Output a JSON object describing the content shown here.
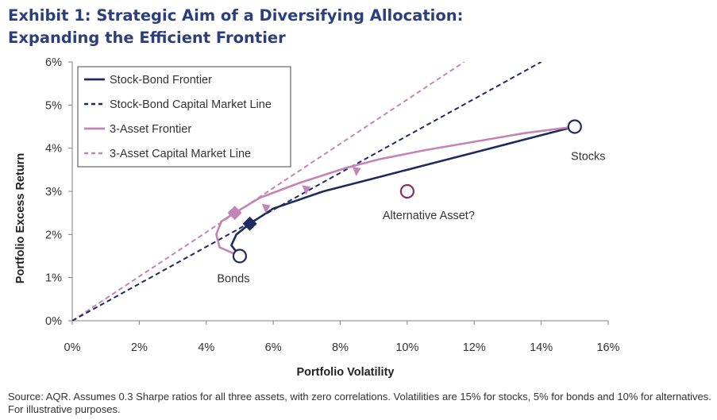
{
  "header": {
    "title_line1": "Exhibit 1: Strategic Aim of a Diversifying Allocation:",
    "title_line2": "Expanding the Efficient Frontier"
  },
  "footer": {
    "source": "Source: AQR. Assumes 0.3 Sharpe ratios for all three assets, with zero correlations. Volatilities are 15% for stocks, 5% for bonds and 10% for alternatives. For illustrative purposes."
  },
  "chart_data": {
    "type": "line",
    "title": "Exhibit 1: Strategic Aim of a Diversifying Allocation: Expanding the Efficient Frontier",
    "xlabel": "Portfolio Volatility",
    "ylabel": "Portfolio Excess Return",
    "xlim": [
      0,
      16
    ],
    "ylim": [
      0,
      6
    ],
    "x_ticks": [
      0,
      2,
      4,
      6,
      8,
      10,
      12,
      14,
      16
    ],
    "y_ticks": [
      0,
      1,
      2,
      3,
      4,
      5,
      6
    ],
    "x_tick_labels": [
      "0%",
      "2%",
      "4%",
      "6%",
      "8%",
      "10%",
      "12%",
      "14%",
      "16%"
    ],
    "y_tick_labels": [
      "0%",
      "1%",
      "2%",
      "3%",
      "4%",
      "5%",
      "6%"
    ],
    "grid": false,
    "legend_position": "top-left",
    "colors": {
      "navy": "#1f2a5e",
      "pink": "#c484b8",
      "purple": "#8b2a6a",
      "axis": "#7f7f7f",
      "title": "#2b3f7e"
    },
    "series": [
      {
        "name": "Stock-Bond Frontier",
        "style": "solid",
        "color": "#1f2a5e",
        "x": [
          5.0,
          4.75,
          4.9,
          5.3,
          6.0,
          7.5,
          9.0,
          10.5,
          12.0,
          13.5,
          15.0
        ],
        "y": [
          1.5,
          1.75,
          2.0,
          2.25,
          2.6,
          3.0,
          3.3,
          3.6,
          3.9,
          4.2,
          4.5
        ]
      },
      {
        "name": "Stock-Bond Capital Market Line",
        "style": "dashed",
        "color": "#1f2a5e",
        "x": [
          0,
          14.0
        ],
        "y": [
          0,
          6.0
        ]
      },
      {
        "name": "3-Asset Frontier",
        "style": "solid",
        "color": "#c484b8",
        "x": [
          4.85,
          4.4,
          4.3,
          4.45,
          4.85,
          5.6,
          6.8,
          8.2,
          9.2,
          10.5,
          12.0,
          13.5,
          15.0
        ],
        "y": [
          1.55,
          1.7,
          2.0,
          2.3,
          2.5,
          2.85,
          3.2,
          3.55,
          3.75,
          3.95,
          4.15,
          4.35,
          4.5
        ]
      },
      {
        "name": "3-Asset Capital Market Line",
        "style": "dashed",
        "color": "#c484b8",
        "x": [
          0,
          11.7
        ],
        "y": [
          0,
          6.0
        ]
      }
    ],
    "points": [
      {
        "label": "Stocks",
        "x": 15.0,
        "y": 4.5,
        "color": "#1f2a5e",
        "marker": "circle"
      },
      {
        "label": "Bonds",
        "x": 5.0,
        "y": 1.5,
        "color": "#1f2a5e",
        "marker": "circle"
      },
      {
        "label": "Alternative Asset?",
        "x": 10.0,
        "y": 3.0,
        "color": "#8b2a6a",
        "marker": "circle"
      }
    ],
    "tangency_points": [
      {
        "series": "Stock-Bond",
        "x": 5.3,
        "y": 2.25,
        "color": "#1f2a5e",
        "marker": "diamond"
      },
      {
        "series": "3-Asset",
        "x": 4.85,
        "y": 2.5,
        "color": "#c484b8",
        "marker": "diamond"
      }
    ],
    "arrows": [
      {
        "x": 5.8,
        "y": 2.62
      },
      {
        "x": 7.0,
        "y": 3.05
      },
      {
        "x": 8.5,
        "y": 3.48
      }
    ]
  }
}
